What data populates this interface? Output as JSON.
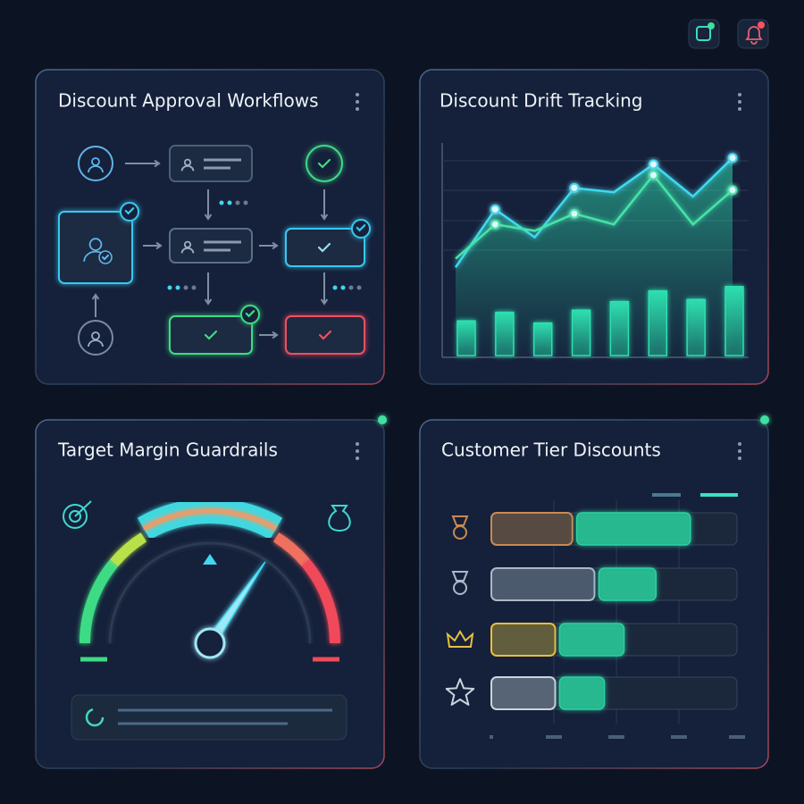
{
  "workflow": {
    "title": "Discount Approval Workflows"
  },
  "drift": {
    "title": "Discount Drift Tracking",
    "ylim": [
      0,
      100
    ],
    "lines": [
      {
        "color": "#3fd8f0",
        "values": [
          42,
          69,
          56,
          79,
          77,
          90,
          75,
          93
        ]
      },
      {
        "color": "#45e3a8",
        "values": [
          46,
          62,
          59,
          67,
          62,
          85,
          62,
          78
        ]
      }
    ],
    "bars": {
      "color": "#2ee0b0",
      "values": [
        17,
        21,
        16,
        22,
        26,
        31,
        27,
        33
      ]
    }
  },
  "guardrails": {
    "title": "Target Margin Guardrails",
    "gauge": {
      "value": 69,
      "lim": [
        0,
        100
      ]
    }
  },
  "tiers": {
    "title": "Customer Tier Discounts",
    "xlim": [
      0,
      100
    ],
    "rows": [
      {
        "color": "#c88a50",
        "values": [
          33,
          48
        ]
      },
      {
        "color": "#aab8c8",
        "values": [
          42,
          25
        ]
      },
      {
        "color": "#e6c040",
        "values": [
          26,
          28
        ]
      },
      {
        "color": "#c8d4e0",
        "values": [
          26,
          20
        ]
      }
    ],
    "second_color": "#2bd4a0"
  }
}
